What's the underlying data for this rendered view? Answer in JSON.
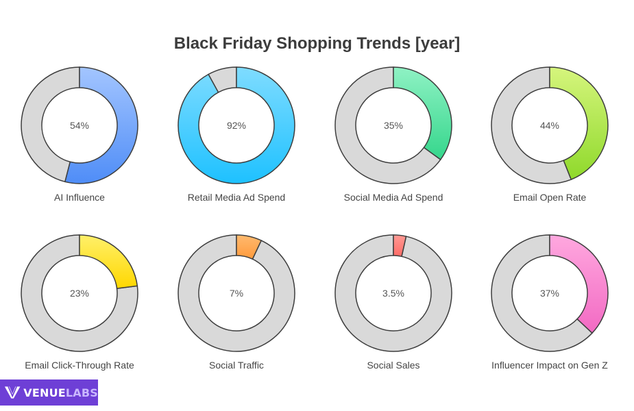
{
  "chart_data": {
    "type": "donut",
    "title": "Black Friday Shopping Trends [year]",
    "items": [
      {
        "label": "AI Influence",
        "value": 54,
        "display": "54%",
        "color_start": "#a3c5ff",
        "color_end": "#4f8df7"
      },
      {
        "label": "Retail Media Ad Spend",
        "value": 92,
        "display": "92%",
        "color_start": "#7fdcff",
        "color_end": "#1ec1ff"
      },
      {
        "label": "Social Media Ad Spend",
        "value": 35,
        "display": "35%",
        "color_start": "#8ff2c4",
        "color_end": "#35d68c"
      },
      {
        "label": "Email Open Rate",
        "value": 44,
        "display": "44%",
        "color_start": "#d6f57d",
        "color_end": "#8fd92b"
      },
      {
        "label": "Email Click-Through Rate",
        "value": 23,
        "display": "23%",
        "color_start": "#fff06a",
        "color_end": "#ffd700"
      },
      {
        "label": "Social Traffic",
        "value": 7,
        "display": "7%",
        "color_start": "#ffba6f",
        "color_end": "#ff9a3c"
      },
      {
        "label": "Social Sales",
        "value": 3.5,
        "display": "3.5%",
        "color_start": "#ff9a94",
        "color_end": "#ff6b66"
      },
      {
        "label": "Influencer Impact on Gen Z",
        "value": 37,
        "display": "37%",
        "color_start": "#ffa8df",
        "color_end": "#f26ac3"
      }
    ],
    "remainder_color": "#d9d9d9",
    "outline_color": "#3d3d3d"
  },
  "logo": {
    "part1": "VENUE",
    "part2": "LABS",
    "color": "#6e3fd6"
  }
}
